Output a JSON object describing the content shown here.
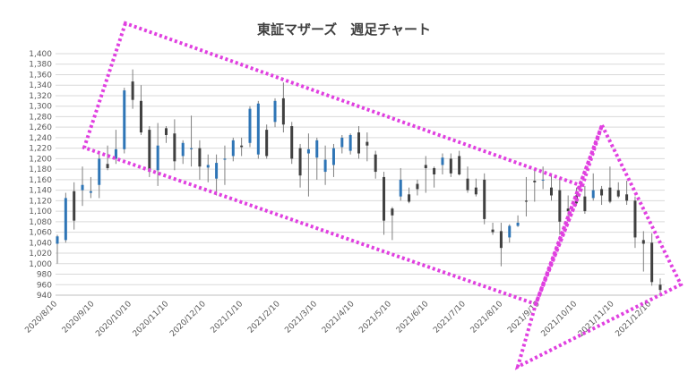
{
  "chart_data": {
    "type": "candlestick",
    "title": "東証マザーズ　週足チャート",
    "ylim": [
      940,
      1400
    ],
    "ytick_step": 20,
    "y_ticks": [
      "940",
      "960",
      "980",
      "1,000",
      "1,020",
      "1,040",
      "1,060",
      "1,080",
      "1,100",
      "1,120",
      "1,140",
      "1,160",
      "1,180",
      "1,200",
      "1,220",
      "1,240",
      "1,260",
      "1,280",
      "1,300",
      "1,320",
      "1,340",
      "1,360",
      "1,380",
      "1,400"
    ],
    "x_ticks": [
      "2020/8/10",
      "2020/9/10",
      "2020/10/10",
      "2020/11/10",
      "2020/12/10",
      "2021/1/10",
      "2021/2/10",
      "2021/3/10",
      "2021/4/10",
      "2021/5/10",
      "2021/6/10",
      "2021/7/10",
      "2021/8/10",
      "2021/9/10",
      "2021/10/10",
      "2021/11/10",
      "2021/12/10"
    ],
    "grid": true,
    "legend": "none",
    "colors": {
      "up": "#2E75B6",
      "down": "#404040",
      "grid": "#D9D9D9",
      "annotation": "#E040E0"
    },
    "series": [
      {
        "candles": [
          {
            "o": 1038,
            "h": 1055,
            "l": 1000,
            "c": 1052
          },
          {
            "o": 1045,
            "h": 1135,
            "l": 1040,
            "c": 1125
          },
          {
            "o": 1138,
            "h": 1155,
            "l": 1065,
            "c": 1082
          },
          {
            "o": 1140,
            "h": 1185,
            "l": 1110,
            "c": 1150
          },
          {
            "o": 1135,
            "h": 1165,
            "l": 1125,
            "c": 1138
          },
          {
            "o": 1150,
            "h": 1210,
            "l": 1125,
            "c": 1200
          },
          {
            "o": 1190,
            "h": 1225,
            "l": 1178,
            "c": 1182
          },
          {
            "o": 1200,
            "h": 1255,
            "l": 1190,
            "c": 1218
          },
          {
            "o": 1218,
            "h": 1335,
            "l": 1210,
            "c": 1330
          },
          {
            "o": 1347,
            "h": 1370,
            "l": 1295,
            "c": 1312
          },
          {
            "o": 1310,
            "h": 1340,
            "l": 1245,
            "c": 1250
          },
          {
            "o": 1255,
            "h": 1262,
            "l": 1165,
            "c": 1175
          },
          {
            "o": 1178,
            "h": 1268,
            "l": 1148,
            "c": 1225
          },
          {
            "o": 1258,
            "h": 1262,
            "l": 1230,
            "c": 1245
          },
          {
            "o": 1248,
            "h": 1275,
            "l": 1178,
            "c": 1195
          },
          {
            "o": 1205,
            "h": 1235,
            "l": 1190,
            "c": 1230
          },
          {
            "o": 1218,
            "h": 1282,
            "l": 1185,
            "c": 1220
          },
          {
            "o": 1220,
            "h": 1235,
            "l": 1160,
            "c": 1185
          },
          {
            "o": 1183,
            "h": 1208,
            "l": 1155,
            "c": 1188
          },
          {
            "o": 1162,
            "h": 1208,
            "l": 1130,
            "c": 1192
          },
          {
            "o": 1198,
            "h": 1225,
            "l": 1150,
            "c": 1200
          },
          {
            "o": 1205,
            "h": 1240,
            "l": 1195,
            "c": 1235
          },
          {
            "o": 1225,
            "h": 1240,
            "l": 1205,
            "c": 1222
          },
          {
            "o": 1230,
            "h": 1300,
            "l": 1222,
            "c": 1295
          },
          {
            "o": 1208,
            "h": 1310,
            "l": 1200,
            "c": 1305
          },
          {
            "o": 1255,
            "h": 1265,
            "l": 1200,
            "c": 1205
          },
          {
            "o": 1270,
            "h": 1315,
            "l": 1260,
            "c": 1310
          },
          {
            "o": 1315,
            "h": 1345,
            "l": 1250,
            "c": 1265
          },
          {
            "o": 1262,
            "h": 1270,
            "l": 1190,
            "c": 1200
          },
          {
            "o": 1220,
            "h": 1228,
            "l": 1145,
            "c": 1168
          },
          {
            "o": 1210,
            "h": 1248,
            "l": 1128,
            "c": 1218
          },
          {
            "o": 1202,
            "h": 1240,
            "l": 1160,
            "c": 1235
          },
          {
            "o": 1175,
            "h": 1225,
            "l": 1150,
            "c": 1198
          },
          {
            "o": 1188,
            "h": 1228,
            "l": 1165,
            "c": 1220
          },
          {
            "o": 1222,
            "h": 1245,
            "l": 1210,
            "c": 1240
          },
          {
            "o": 1215,
            "h": 1248,
            "l": 1208,
            "c": 1245
          },
          {
            "o": 1250,
            "h": 1262,
            "l": 1200,
            "c": 1210
          },
          {
            "o": 1232,
            "h": 1250,
            "l": 1195,
            "c": 1225
          },
          {
            "o": 1208,
            "h": 1215,
            "l": 1162,
            "c": 1175
          },
          {
            "o": 1165,
            "h": 1175,
            "l": 1055,
            "c": 1082
          },
          {
            "o": 1105,
            "h": 1108,
            "l": 1045,
            "c": 1092
          },
          {
            "o": 1128,
            "h": 1182,
            "l": 1120,
            "c": 1160
          },
          {
            "o": 1132,
            "h": 1145,
            "l": 1115,
            "c": 1118
          },
          {
            "o": 1152,
            "h": 1160,
            "l": 1130,
            "c": 1142
          },
          {
            "o": 1188,
            "h": 1205,
            "l": 1135,
            "c": 1182
          },
          {
            "o": 1182,
            "h": 1185,
            "l": 1145,
            "c": 1170
          },
          {
            "o": 1188,
            "h": 1210,
            "l": 1170,
            "c": 1202
          },
          {
            "o": 1200,
            "h": 1210,
            "l": 1165,
            "c": 1172
          },
          {
            "o": 1205,
            "h": 1215,
            "l": 1168,
            "c": 1170
          },
          {
            "o": 1162,
            "h": 1185,
            "l": 1135,
            "c": 1140
          },
          {
            "o": 1145,
            "h": 1162,
            "l": 1128,
            "c": 1132
          },
          {
            "o": 1160,
            "h": 1172,
            "l": 1075,
            "c": 1085
          },
          {
            "o": 1065,
            "h": 1078,
            "l": 1055,
            "c": 1060
          },
          {
            "o": 1062,
            "h": 1078,
            "l": 995,
            "c": 1030
          },
          {
            "o": 1050,
            "h": 1075,
            "l": 1040,
            "c": 1072
          },
          {
            "o": 1072,
            "h": 1092,
            "l": 1070,
            "c": 1078
          },
          {
            "o": 1120,
            "h": 1165,
            "l": 1090,
            "c": 1118
          },
          {
            "o": 1158,
            "h": 1178,
            "l": 1118,
            "c": 1155
          },
          {
            "o": 1160,
            "h": 1185,
            "l": 1142,
            "c": 1160
          },
          {
            "o": 1145,
            "h": 1170,
            "l": 1120,
            "c": 1130
          },
          {
            "o": 1140,
            "h": 1162,
            "l": 1055,
            "c": 1080
          },
          {
            "o": 1105,
            "h": 1130,
            "l": 1082,
            "c": 1100
          },
          {
            "o": 1130,
            "h": 1145,
            "l": 1110,
            "c": 1115
          },
          {
            "o": 1128,
            "h": 1148,
            "l": 1095,
            "c": 1100
          },
          {
            "o": 1125,
            "h": 1172,
            "l": 1120,
            "c": 1140
          },
          {
            "o": 1142,
            "h": 1148,
            "l": 1112,
            "c": 1130
          },
          {
            "o": 1145,
            "h": 1185,
            "l": 1115,
            "c": 1118
          },
          {
            "o": 1140,
            "h": 1155,
            "l": 1125,
            "c": 1128
          },
          {
            "o": 1132,
            "h": 1158,
            "l": 1112,
            "c": 1120
          },
          {
            "o": 1120,
            "h": 1128,
            "l": 1030,
            "c": 1050
          },
          {
            "o": 1045,
            "h": 1062,
            "l": 985,
            "c": 1038
          },
          {
            "o": 1040,
            "h": 1058,
            "l": 958,
            "c": 965
          },
          {
            "o": 960,
            "h": 972,
            "l": 945,
            "c": 950
          }
        ]
      }
    ]
  }
}
